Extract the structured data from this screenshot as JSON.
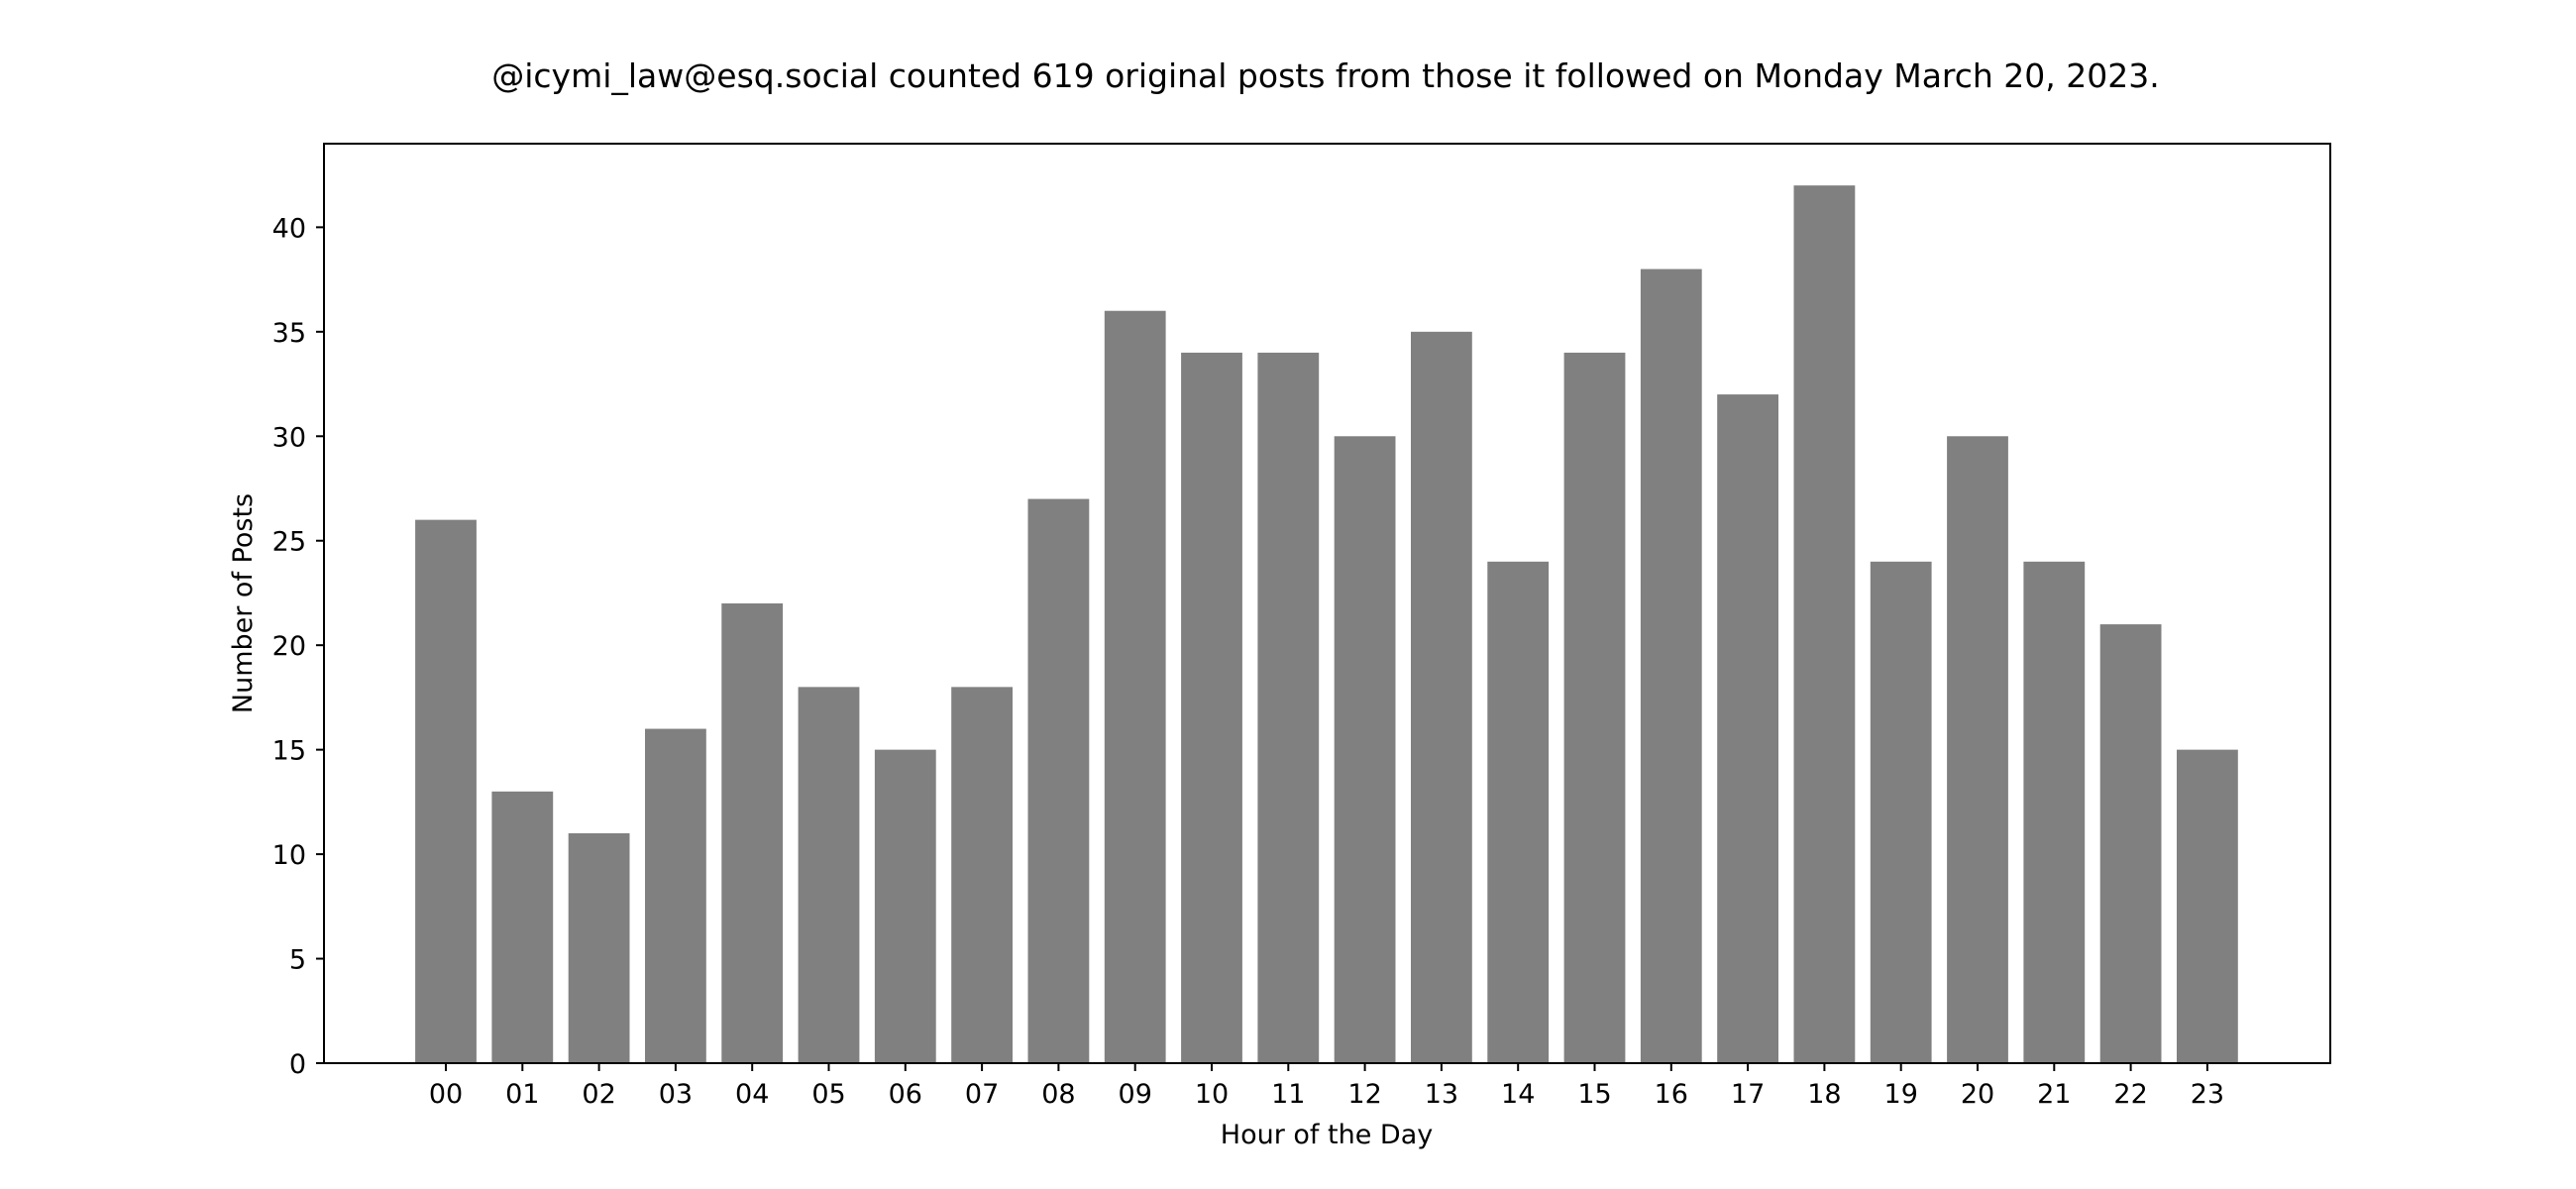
{
  "chart_data": {
    "type": "bar",
    "title": "@icymi_law@esq.social counted 619 original posts from those it followed on Monday March 20, 2023.",
    "xlabel": "Hour of the Day",
    "ylabel": "Number of Posts",
    "categories": [
      "00",
      "01",
      "02",
      "03",
      "04",
      "05",
      "06",
      "07",
      "08",
      "09",
      "10",
      "11",
      "12",
      "13",
      "14",
      "15",
      "16",
      "17",
      "18",
      "19",
      "20",
      "21",
      "22",
      "23"
    ],
    "values": [
      26,
      13,
      11,
      16,
      22,
      18,
      15,
      18,
      27,
      36,
      34,
      34,
      30,
      35,
      24,
      34,
      38,
      32,
      42,
      24,
      30,
      24,
      21,
      15
    ],
    "ylim": [
      0,
      44
    ],
    "yticks": [
      0,
      5,
      10,
      15,
      20,
      25,
      30,
      35,
      40
    ],
    "bar_color": "#808080",
    "grid": false,
    "legend": "none"
  }
}
